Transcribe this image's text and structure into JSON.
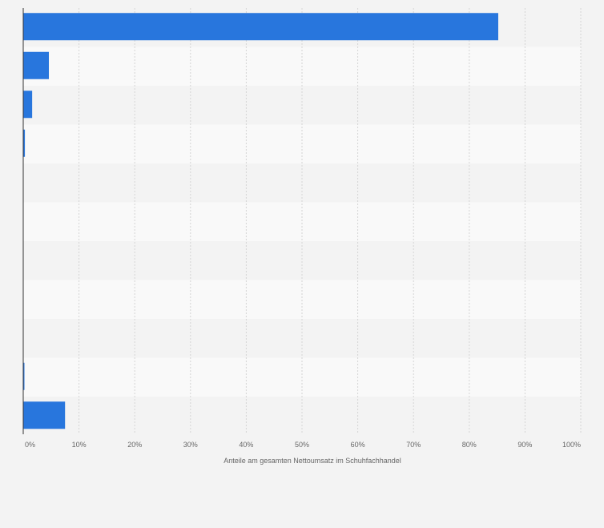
{
  "chart_data": {
    "type": "bar",
    "orientation": "horizontal",
    "categories": [
      "",
      "",
      "",
      "",
      "",
      "",
      "",
      "",
      "",
      "",
      ""
    ],
    "values": [
      85.2,
      4.6,
      1.6,
      0.3,
      0.0,
      0.0,
      0.0,
      0.0,
      0.0,
      0.2,
      7.5
    ],
    "xlabel": "Anteile am gesamten Nettoumsatz im Schuhfachhandel",
    "ylabel": "",
    "xlim": [
      0,
      100
    ],
    "xticks": [
      0,
      10,
      20,
      30,
      40,
      50,
      60,
      70,
      80,
      90,
      100
    ],
    "xtick_labels": [
      "0%",
      "10%",
      "20%",
      "30%",
      "40%",
      "50%",
      "60%",
      "70%",
      "80%",
      "90%",
      "100%"
    ],
    "grid": true,
    "legend": "none"
  },
  "colors": {
    "bar": "#2876dd",
    "band_light": "#f9f9f9",
    "band_dark": "#f3f3f3",
    "grid": "#d4d4d4",
    "axis": "#333333"
  }
}
